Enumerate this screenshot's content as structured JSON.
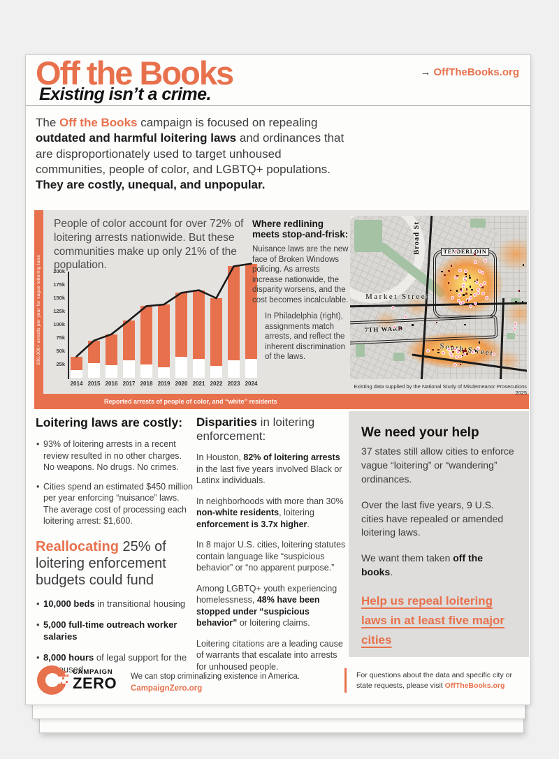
{
  "colors": {
    "accent": "#E8714D"
  },
  "header": {
    "title": "Off the Books",
    "tagline": "Existing isn’t a crime.",
    "arrow": "→",
    "site_link": "OffTheBooks.org"
  },
  "intro": {
    "s1": "The ",
    "s2": "Off the Books",
    "s3": " campaign is focused on repealing ",
    "s4": "outdated and harmful loitering laws",
    "s5": " and ordinances that are disproportionately used to target unhoused communities, people of color, and LGBTQ+ populations. ",
    "s6": "They are costly, unequal, and unpopular."
  },
  "panel": {
    "headline": "People of color account for over 72% of loitering arrests nationwide. But these communities make up only 21% of the population.",
    "redlining": {
      "heading": "Where redlining meets stop-and-frisk:",
      "p1": "Nuisance laws are the new face of Broken Windows policing. As arrests increase nationwide, the disparity worsens, and the cost becomes incalculable.",
      "p2": "In Philadelphia (right), assignments match arrests, and reflect the inherent discrimination of the laws."
    },
    "map": {
      "labels": {
        "broad": "Broad St",
        "market": "Market Street",
        "south": "South Street",
        "tenderloin": "TENDERLOIN",
        "ward": "7TH WARD"
      },
      "caption": "Existing data supplied by the National Study of Misdemeanor Prosecutions 2025"
    }
  },
  "chart_data": {
    "type": "bar",
    "stacked": true,
    "title": "People of color account for over 72% of loitering arrests nationwide. But these communities make up only 21% of the population.",
    "categories": [
      "2014",
      "2015",
      "2016",
      "2017",
      "2018",
      "2019",
      "2020",
      "2021",
      "2022",
      "2023",
      "2024"
    ],
    "series": [
      {
        "name": "“white” residents",
        "color": "#ffffff",
        "values": [
          15000,
          27000,
          24000,
          33000,
          25000,
          20000,
          40000,
          36000,
          22000,
          33000,
          35000
        ]
      },
      {
        "name": "people of color",
        "color": "#E8714D",
        "values": [
          25000,
          43000,
          58000,
          75000,
          110000,
          118000,
          120000,
          129000,
          128000,
          177000,
          180000
        ]
      }
    ],
    "line_overlay": {
      "name": "total reported arrests",
      "color": "#1a1a1a",
      "values": [
        40000,
        70000,
        82000,
        108000,
        135000,
        138000,
        160000,
        165000,
        150000,
        210000,
        215000
      ]
    },
    "yticks": [
      "25k",
      "50k",
      "75k",
      "100k",
      "125k",
      "150k",
      "175k",
      "200k"
    ],
    "ylim": [
      0,
      220000
    ],
    "grid": false,
    "legend": "none",
    "ylabel": "200,000+ arrests per year for vague loitering laws",
    "caption": "Reported arrests of people of color, and “white” residents"
  },
  "columns": {
    "costly": {
      "heading": "Loitering laws are costly:",
      "bullets": [
        {
          "text": "93% of loitering arrests in a recent review resulted in no other charges. No weapons. No drugs. No crimes."
        },
        {
          "text": "Cities spend an estimated $450 million per year enforcing “nuisance” laws. The average cost of processing each loitering arrest: $1,600."
        }
      ],
      "realloc": {
        "s1": "Reallocating",
        "s2": " 25% of loitering enforcement budgets could fund"
      },
      "fund": [
        {
          "b": "10,000 beds",
          "r": " in transitional housing"
        },
        {
          "b": "5,000 full-time outreach worker salaries",
          "r": ""
        },
        {
          "b": "8,000 hours",
          "r": " of legal support for the unhoused"
        }
      ]
    },
    "disparities": {
      "h1": "Disparities",
      "h2": " in loitering enforcement:",
      "p1": {
        "a": "In Houston, ",
        "b": "82% of loitering arrests",
        "c": " in the last five years involved Black or Latinx individuals."
      },
      "p2": {
        "a": "In neighborhoods with more than 30% ",
        "b": "non-white residents",
        "c": ", loitering ",
        "d": "enforcement is 3.7x higher",
        "e": "."
      },
      "p3": {
        "text": "In 8 major U.S. cities, loitering statutes contain language like “suspicious behavior” or “no apparent purpose.”"
      },
      "p4": {
        "a": "Among LGBTQ+ youth experiencing homelessness, ",
        "b": "48% have been stopped under “suspicious behavior”",
        "c": " or loitering claims."
      },
      "p5": {
        "text": "Loitering citations are a leading cause of warrants that escalate into arrests for unhoused people."
      }
    },
    "help": {
      "heading": "We need your help",
      "p1": "37 states still allow cities to enforce vague “loitering” or “wandering” ordinances.",
      "p2": "Over the last five years, 9 U.S. cities have repealed or amended loitering laws.",
      "p3a": "We want them taken ",
      "p3b": "off the books",
      "p3c": ".",
      "link": "Help us repeal loitering laws in at least five major cities"
    }
  },
  "footer": {
    "wordmark1": "CAMPAIGN",
    "wordmark2": "ZERO",
    "tagline": "We can stop criminalizing existence in America.",
    "link": "CampaignZero.org",
    "note_a": "For questions about the data and specific city or state requests, please visit ",
    "note_link": "OffTheBooks.org"
  }
}
